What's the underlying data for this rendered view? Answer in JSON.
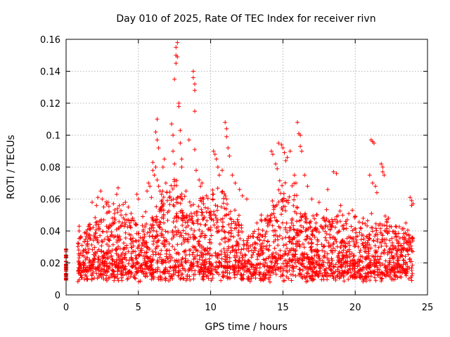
{
  "chart_data": {
    "type": "scatter",
    "title": "Day 010 of 2025, Rate Of TEC Index for receiver rivn",
    "xlabel": "GPS time / hours",
    "ylabel": "ROTI / TECUs",
    "xlim": [
      0,
      25
    ],
    "ylim": [
      0,
      0.16
    ],
    "xticks": [
      0,
      5,
      10,
      15,
      20,
      25
    ],
    "xtick_labels": [
      "0",
      "5",
      "10",
      "15",
      "20",
      "25"
    ],
    "yticks": [
      0,
      0.02,
      0.04,
      0.06,
      0.08,
      0.1,
      0.12,
      0.14,
      0.16
    ],
    "ytick_labels": [
      "0",
      "0.02",
      "0.04",
      "0.06",
      "0.08",
      "0.1",
      "0.12",
      "0.14",
      "0.16"
    ],
    "grid": true,
    "marker": "+",
    "color": "#ff0000",
    "series": [
      {
        "name": "ROTI",
        "points": [
          [
            0.0,
            0.027
          ],
          [
            0.0,
            0.025
          ],
          [
            0.0,
            0.018
          ],
          [
            0.0,
            0.016
          ],
          [
            0.0,
            0.012
          ],
          [
            0.0,
            0.01
          ],
          [
            0.9,
            0.043
          ],
          [
            0.9,
            0.04
          ],
          [
            1.0,
            0.036
          ],
          [
            1.1,
            0.031
          ],
          [
            1.2,
            0.028
          ],
          [
            1.8,
            0.058
          ],
          [
            2.1,
            0.056
          ],
          [
            2.2,
            0.061
          ],
          [
            2.4,
            0.065
          ],
          [
            2.5,
            0.06
          ],
          [
            2.6,
            0.055
          ],
          [
            2.9,
            0.058
          ],
          [
            3.0,
            0.052
          ],
          [
            3.2,
            0.048
          ],
          [
            3.4,
            0.047
          ],
          [
            3.5,
            0.063
          ],
          [
            3.6,
            0.067
          ],
          [
            3.8,
            0.05
          ],
          [
            3.9,
            0.045
          ],
          [
            4.1,
            0.058
          ],
          [
            4.3,
            0.055
          ],
          [
            4.5,
            0.051
          ],
          [
            4.6,
            0.048
          ],
          [
            4.9,
            0.063
          ],
          [
            5.0,
            0.06
          ],
          [
            5.3,
            0.049
          ],
          [
            5.5,
            0.052
          ],
          [
            5.6,
            0.065
          ],
          [
            5.7,
            0.07
          ],
          [
            5.8,
            0.068
          ],
          [
            5.9,
            0.061
          ],
          [
            6.0,
            0.083
          ],
          [
            6.0,
            0.078
          ],
          [
            6.1,
            0.075
          ],
          [
            6.2,
            0.08
          ],
          [
            6.3,
            0.072
          ],
          [
            6.2,
            0.102
          ],
          [
            6.3,
            0.11
          ],
          [
            6.3,
            0.097
          ],
          [
            6.4,
            0.092
          ],
          [
            6.4,
            0.068
          ],
          [
            6.5,
            0.065
          ],
          [
            6.6,
            0.063
          ],
          [
            6.7,
            0.08
          ],
          [
            6.8,
            0.085
          ],
          [
            6.9,
            0.07
          ],
          [
            7.0,
            0.059
          ],
          [
            7.3,
            0.107
          ],
          [
            7.4,
            0.1
          ],
          [
            7.4,
            0.09
          ],
          [
            7.5,
            0.082
          ],
          [
            7.5,
            0.135
          ],
          [
            7.6,
            0.145
          ],
          [
            7.6,
            0.15
          ],
          [
            7.6,
            0.155
          ],
          [
            7.7,
            0.158
          ],
          [
            7.7,
            0.149
          ],
          [
            7.8,
            0.118
          ],
          [
            7.8,
            0.12
          ],
          [
            7.9,
            0.103
          ],
          [
            7.9,
            0.095
          ],
          [
            8.0,
            0.085
          ],
          [
            8.0,
            0.08
          ],
          [
            8.3,
            0.065
          ],
          [
            8.5,
            0.097
          ],
          [
            8.8,
            0.14
          ],
          [
            8.8,
            0.136
          ],
          [
            8.9,
            0.132
          ],
          [
            8.9,
            0.128
          ],
          [
            8.9,
            0.115
          ],
          [
            8.9,
            0.091
          ],
          [
            9.0,
            0.078
          ],
          [
            9.2,
            0.072
          ],
          [
            9.3,
            0.068
          ],
          [
            9.4,
            0.07
          ],
          [
            9.5,
            0.06
          ],
          [
            9.7,
            0.062
          ],
          [
            10.2,
            0.09
          ],
          [
            10.3,
            0.088
          ],
          [
            10.4,
            0.085
          ],
          [
            10.5,
            0.08
          ],
          [
            10.6,
            0.075
          ],
          [
            10.8,
            0.078
          ],
          [
            11.0,
            0.108
          ],
          [
            11.1,
            0.104
          ],
          [
            11.1,
            0.099
          ],
          [
            11.2,
            0.092
          ],
          [
            11.3,
            0.087
          ],
          [
            11.5,
            0.075
          ],
          [
            11.7,
            0.07
          ],
          [
            12.0,
            0.066
          ],
          [
            12.2,
            0.062
          ],
          [
            12.5,
            0.06
          ],
          [
            13.2,
            0.045
          ],
          [
            13.5,
            0.05
          ],
          [
            13.8,
            0.047
          ],
          [
            14.2,
            0.09
          ],
          [
            14.3,
            0.088
          ],
          [
            14.5,
            0.082
          ],
          [
            14.6,
            0.079
          ],
          [
            14.7,
            0.095
          ],
          [
            14.9,
            0.094
          ],
          [
            15.0,
            0.092
          ],
          [
            15.1,
            0.089
          ],
          [
            15.2,
            0.084
          ],
          [
            15.3,
            0.086
          ],
          [
            15.5,
            0.09
          ],
          [
            15.8,
            0.075
          ],
          [
            15.9,
            0.07
          ],
          [
            16.0,
            0.108
          ],
          [
            16.1,
            0.101
          ],
          [
            16.2,
            0.1
          ],
          [
            16.2,
            0.093
          ],
          [
            16.3,
            0.09
          ],
          [
            16.5,
            0.075
          ],
          [
            16.7,
            0.068
          ],
          [
            17.0,
            0.06
          ],
          [
            17.5,
            0.058
          ],
          [
            18.1,
            0.066
          ],
          [
            18.5,
            0.077
          ],
          [
            18.7,
            0.076
          ],
          [
            19.0,
            0.056
          ],
          [
            19.8,
            0.053
          ],
          [
            20.0,
            0.049
          ],
          [
            20.5,
            0.045
          ],
          [
            21.0,
            0.075
          ],
          [
            21.1,
            0.097
          ],
          [
            21.2,
            0.096
          ],
          [
            21.3,
            0.095
          ],
          [
            21.2,
            0.07
          ],
          [
            21.4,
            0.068
          ],
          [
            21.5,
            0.064
          ],
          [
            21.8,
            0.082
          ],
          [
            21.9,
            0.08
          ],
          [
            21.9,
            0.077
          ],
          [
            22.0,
            0.075
          ],
          [
            22.3,
            0.048
          ],
          [
            22.8,
            0.043
          ],
          [
            23.5,
            0.045
          ],
          [
            23.8,
            0.061
          ],
          [
            23.9,
            0.059
          ],
          [
            23.9,
            0.056
          ],
          [
            24.0,
            0.057
          ]
        ]
      }
    ]
  }
}
